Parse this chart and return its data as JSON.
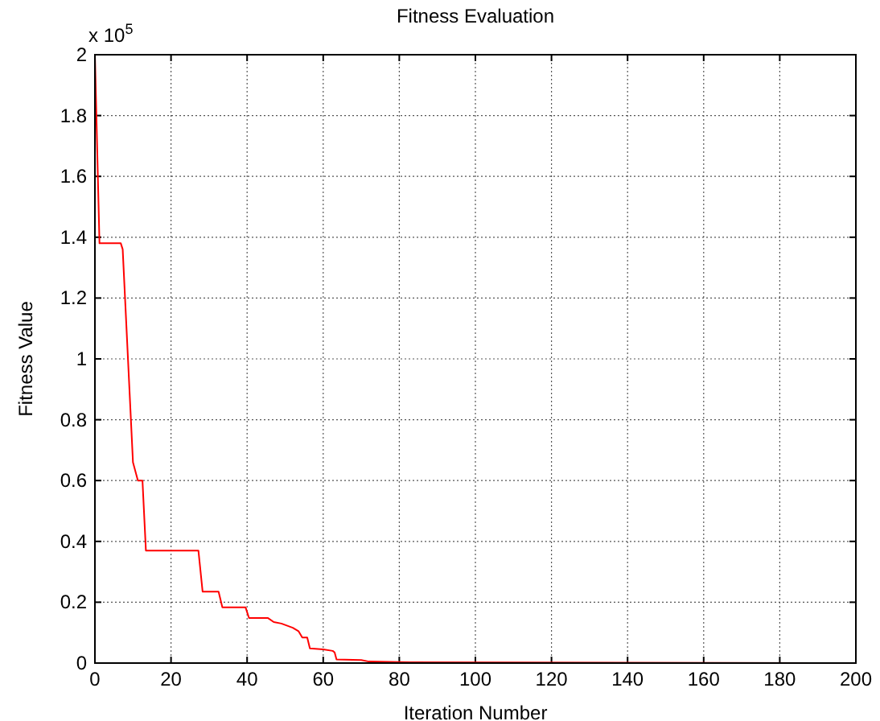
{
  "chart_data": {
    "type": "line",
    "title": "Fitness Evaluation",
    "xlabel": "Iteration Number",
    "ylabel": "Fitness Value",
    "annotations": [
      "x 10$^{5}$"
    ],
    "xlim": [
      0,
      200
    ],
    "xticks": [
      0,
      20,
      40,
      60,
      80,
      100,
      120,
      140,
      160,
      180,
      200
    ],
    "ylim": [
      0,
      2
    ],
    "yticks": [
      0,
      0.2,
      0.4,
      0.6,
      0.8,
      1,
      1.2,
      1.4,
      1.6,
      1.8,
      2
    ],
    "grid": true,
    "marker": "none",
    "line_style": "solid",
    "series": [
      {
        "color": "#ff0000",
        "x": [
          0,
          1.2,
          6.8,
          7.3,
          10,
          11.3,
          12.5,
          13.4,
          27.2,
          28.3,
          32.5,
          33.5,
          39.6,
          40.5,
          45.5,
          47,
          49,
          52,
          53.5,
          54.5,
          55.8,
          56.5,
          60,
          62.5,
          63,
          63.5,
          70,
          72,
          80,
          200
        ],
        "values": [
          2,
          1.38,
          1.38,
          1.36,
          0.66,
          0.6,
          0.6,
          0.37,
          0.37,
          0.235,
          0.235,
          0.183,
          0.183,
          0.148,
          0.148,
          0.135,
          0.13,
          0.116,
          0.105,
          0.084,
          0.084,
          0.048,
          0.045,
          0.04,
          0.035,
          0.012,
          0.01,
          0.005,
          0.003,
          0
        ]
      }
    ]
  }
}
